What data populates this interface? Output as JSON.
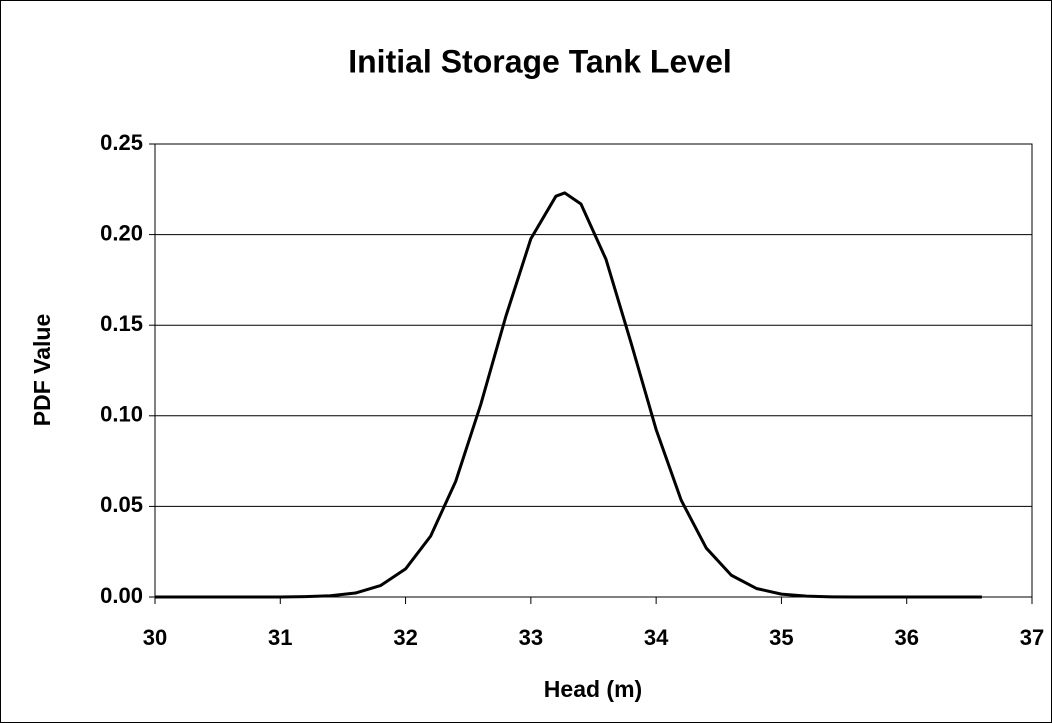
{
  "chart_data": {
    "type": "line",
    "title": "Initial Storage Tank Level",
    "x_label": "Head (m)",
    "y_label": "PDF Value",
    "x": [
      30,
      30.2,
      30.4,
      30.6,
      30.8,
      31,
      31.2,
      31.4,
      31.6,
      31.8,
      32,
      32.2,
      32.4,
      32.6,
      32.8,
      33,
      33.2,
      33.27,
      33.4,
      33.6,
      33.8,
      34,
      34.2,
      34.4,
      34.6,
      34.8,
      35,
      35.2,
      35.4,
      35.6,
      35.8,
      36,
      36.2,
      36.4,
      36.6
    ],
    "series": [
      {
        "name": "PDF",
        "color": "#000000",
        "values": [
          0,
          0,
          0,
          0,
          0,
          0,
          0.0002,
          0.0007,
          0.0022,
          0.0063,
          0.0155,
          0.0336,
          0.0638,
          0.1062,
          0.1548,
          0.1977,
          0.2212,
          0.223,
          0.2169,
          0.1863,
          0.1402,
          0.0924,
          0.0534,
          0.027,
          0.012,
          0.0047,
          0.0016,
          0.0005,
          0.0001,
          0,
          0,
          0,
          0,
          0,
          0
        ]
      }
    ],
    "xlim": [
      30,
      37
    ],
    "xticks": [
      30,
      31,
      32,
      33,
      34,
      35,
      36,
      37
    ],
    "ylim": [
      0,
      0.25
    ],
    "yticks": [
      {
        "value": 0,
        "label": "0.00"
      },
      {
        "value": 0.05,
        "label": "0.05"
      },
      {
        "value": 0.1,
        "label": "0.10"
      },
      {
        "value": 0.15,
        "label": "0.15"
      },
      {
        "value": 0.2,
        "label": "0.20"
      },
      {
        "value": 0.25,
        "label": "0.25"
      }
    ],
    "grid": true
  }
}
